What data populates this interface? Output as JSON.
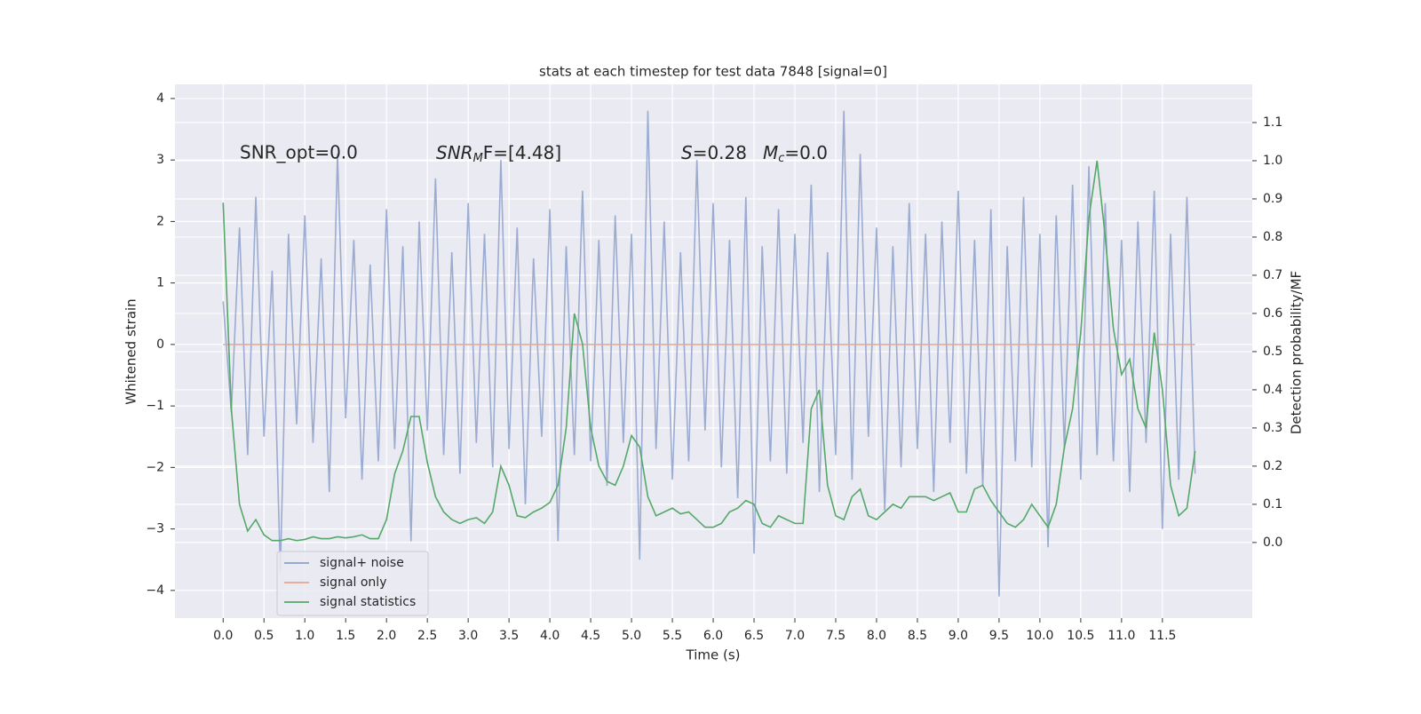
{
  "chart_data": {
    "type": "line",
    "title": "stats at each timestep for test data 7848 [signal=0]",
    "xlabel": "Time (s)",
    "ylabel": "Whitened strain",
    "y2label": "Detection probability/MF",
    "annotations": {
      "snr_opt": "SNR_opt=0.0",
      "snr_mf": [
        "SNR",
        "M",
        "F=[4.48]"
      ],
      "s": [
        "S",
        "=0.28",
        "M",
        "c",
        "=0.0"
      ]
    },
    "x": [
      0,
      0.1,
      0.2,
      0.3,
      0.4,
      0.5,
      0.6,
      0.7,
      0.8,
      0.9,
      1,
      1.1,
      1.2,
      1.3,
      1.4,
      1.5,
      1.6,
      1.7,
      1.8,
      1.9,
      2,
      2.1,
      2.2,
      2.3,
      2.4,
      2.5,
      2.6,
      2.7,
      2.8,
      2.9,
      3,
      3.1,
      3.2,
      3.3,
      3.4,
      3.5,
      3.6,
      3.7,
      3.8,
      3.9,
      4,
      4.1,
      4.2,
      4.3,
      4.4,
      4.5,
      4.6,
      4.7,
      4.8,
      4.9,
      5,
      5.1,
      5.2,
      5.3,
      5.4,
      5.5,
      5.6,
      5.7,
      5.8,
      5.9,
      6,
      6.1,
      6.2,
      6.3,
      6.4,
      6.5,
      6.6,
      6.7,
      6.8,
      6.9,
      7,
      7.1,
      7.2,
      7.3,
      7.4,
      7.5,
      7.6,
      7.7,
      7.8,
      7.9,
      8,
      8.1,
      8.2,
      8.3,
      8.4,
      8.5,
      8.6,
      8.7,
      8.8,
      8.9,
      9,
      9.1,
      9.2,
      9.3,
      9.4,
      9.5,
      9.6,
      9.7,
      9.8,
      9.9,
      10,
      10.1,
      10.2,
      10.3,
      10.4,
      10.5,
      10.6,
      10.7,
      10.8,
      10.9,
      11,
      11.1,
      11.2,
      11.3,
      11.4,
      11.5,
      11.6,
      11.7,
      11.8,
      11.9
    ],
    "series": [
      {
        "name": "signal+ noise",
        "color": "#8da0cb",
        "values": [
          0.7,
          -1.1,
          1.9,
          -1.8,
          2.4,
          -1.5,
          1.2,
          -3.7,
          1.8,
          -1.3,
          2.1,
          -1.6,
          1.4,
          -2.4,
          3.1,
          -1.2,
          1.7,
          -2.2,
          1.3,
          -1.9,
          2.2,
          -1.7,
          1.6,
          -3.2,
          2.0,
          -1.4,
          2.7,
          -1.8,
          1.5,
          -2.1,
          2.3,
          -1.6,
          1.8,
          -2.0,
          3.0,
          -1.7,
          1.9,
          -2.6,
          1.4,
          -1.5,
          2.2,
          -3.2,
          1.6,
          -1.8,
          2.5,
          -1.9,
          1.7,
          -2.3,
          2.1,
          -1.6,
          1.8,
          -3.5,
          3.8,
          -1.7,
          2.0,
          -2.2,
          1.5,
          -1.9,
          3.0,
          -1.4,
          2.3,
          -2.0,
          1.7,
          -2.5,
          2.4,
          -3.4,
          1.6,
          -1.9,
          2.2,
          -2.1,
          1.8,
          -1.6,
          2.6,
          -2.4,
          1.5,
          -1.8,
          3.8,
          -2.2,
          3.1,
          -1.5,
          1.9,
          -2.7,
          1.6,
          -2.0,
          2.3,
          -1.7,
          1.8,
          -2.4,
          2.0,
          -1.6,
          2.5,
          -2.1,
          1.7,
          -2.3,
          2.2,
          -4.1,
          1.6,
          -1.9,
          2.4,
          -2.0,
          1.8,
          -3.3,
          2.1,
          -1.7,
          2.6,
          -2.2,
          2.9,
          -1.8,
          2.3,
          -1.9,
          1.7,
          -2.4,
          2.0,
          -1.6,
          2.5,
          -3.0,
          1.8,
          -2.2,
          2.4,
          -2.1
        ]
      },
      {
        "name": "signal only",
        "color": "#e7a58b",
        "values": [
          0,
          0,
          0,
          0,
          0,
          0,
          0,
          0,
          0,
          0,
          0,
          0,
          0,
          0,
          0,
          0,
          0,
          0,
          0,
          0,
          0,
          0,
          0,
          0,
          0,
          0,
          0,
          0,
          0,
          0,
          0,
          0,
          0,
          0,
          0,
          0,
          0,
          0,
          0,
          0,
          0,
          0,
          0,
          0,
          0,
          0,
          0,
          0,
          0,
          0,
          0,
          0,
          0,
          0,
          0,
          0,
          0,
          0,
          0,
          0,
          0,
          0,
          0,
          0,
          0,
          0,
          0,
          0,
          0,
          0,
          0,
          0,
          0,
          0,
          0,
          0,
          0,
          0,
          0,
          0,
          0,
          0,
          0,
          0,
          0,
          0,
          0,
          0,
          0,
          0,
          0,
          0,
          0,
          0,
          0,
          0,
          0,
          0,
          0,
          0,
          0,
          0,
          0,
          0,
          0,
          0,
          0,
          0,
          0,
          0,
          0,
          0,
          0,
          0,
          0,
          0,
          0,
          0,
          0,
          0
        ]
      },
      {
        "name": "signal statistics",
        "color": "#55a868",
        "axis": "y2",
        "values": [
          0.89,
          0.35,
          0.1,
          0.03,
          0.06,
          0.02,
          0.005,
          0.005,
          0.01,
          0.005,
          0.008,
          0.015,
          0.01,
          0.01,
          0.015,
          0.012,
          0.015,
          0.02,
          0.01,
          0.01,
          0.06,
          0.18,
          0.24,
          0.33,
          0.33,
          0.21,
          0.12,
          0.08,
          0.06,
          0.05,
          0.06,
          0.065,
          0.05,
          0.08,
          0.2,
          0.15,
          0.07,
          0.065,
          0.08,
          0.09,
          0.105,
          0.15,
          0.3,
          0.6,
          0.52,
          0.3,
          0.2,
          0.16,
          0.15,
          0.2,
          0.28,
          0.25,
          0.12,
          0.07,
          0.08,
          0.09,
          0.075,
          0.08,
          0.06,
          0.04,
          0.04,
          0.05,
          0.08,
          0.09,
          0.11,
          0.1,
          0.05,
          0.04,
          0.07,
          0.06,
          0.05,
          0.05,
          0.35,
          0.4,
          0.15,
          0.07,
          0.06,
          0.12,
          0.14,
          0.07,
          0.06,
          0.08,
          0.1,
          0.09,
          0.12,
          0.12,
          0.12,
          0.11,
          0.12,
          0.13,
          0.08,
          0.08,
          0.14,
          0.15,
          0.11,
          0.08,
          0.05,
          0.04,
          0.06,
          0.1,
          0.07,
          0.04,
          0.1,
          0.25,
          0.35,
          0.55,
          0.85,
          1.0,
          0.8,
          0.56,
          0.44,
          0.48,
          0.35,
          0.3,
          0.55,
          0.4,
          0.15,
          0.07,
          0.09,
          0.24
        ]
      }
    ],
    "xlim": [
      -0.59,
      12.6
    ],
    "ylim": [
      -4.45,
      4.23
    ],
    "y2lim": [
      -0.198,
      1.2
    ],
    "xticks": [
      {
        "value": 0,
        "label": "0.0"
      },
      0.5,
      {
        "value": 1,
        "label": "1.0"
      },
      1.5,
      {
        "value": 2,
        "label": "2.0"
      },
      2.5,
      {
        "value": 3,
        "label": "3.0"
      },
      3.5,
      {
        "value": 4,
        "label": "4.0"
      },
      4.5,
      {
        "value": 5,
        "label": "5.0"
      },
      5.5,
      {
        "value": 6,
        "label": "6.0"
      },
      6.5,
      {
        "value": 7,
        "label": "7.0"
      },
      7.5,
      {
        "value": 8,
        "label": "8.0"
      },
      8.5,
      {
        "value": 9,
        "label": "9.0"
      },
      9.5,
      {
        "value": 10,
        "label": "10.0"
      },
      10.5,
      {
        "value": 11,
        "label": "11.0"
      },
      11.5
    ],
    "yticks": [
      {
        "value": -4,
        "label": "−4"
      },
      {
        "value": -3,
        "label": "−3"
      },
      {
        "value": -2,
        "label": "−2"
      },
      {
        "value": -1,
        "label": "−1"
      },
      0,
      1,
      2,
      3,
      4
    ],
    "y2ticks": [
      {
        "value": 0,
        "label": "0.0"
      },
      0.1,
      0.2,
      0.3,
      0.4,
      0.5,
      0.6,
      0.7,
      0.8,
      0.9,
      {
        "value": 1,
        "label": "1.0"
      },
      1.1
    ],
    "grid": true,
    "legend": "lower left"
  }
}
